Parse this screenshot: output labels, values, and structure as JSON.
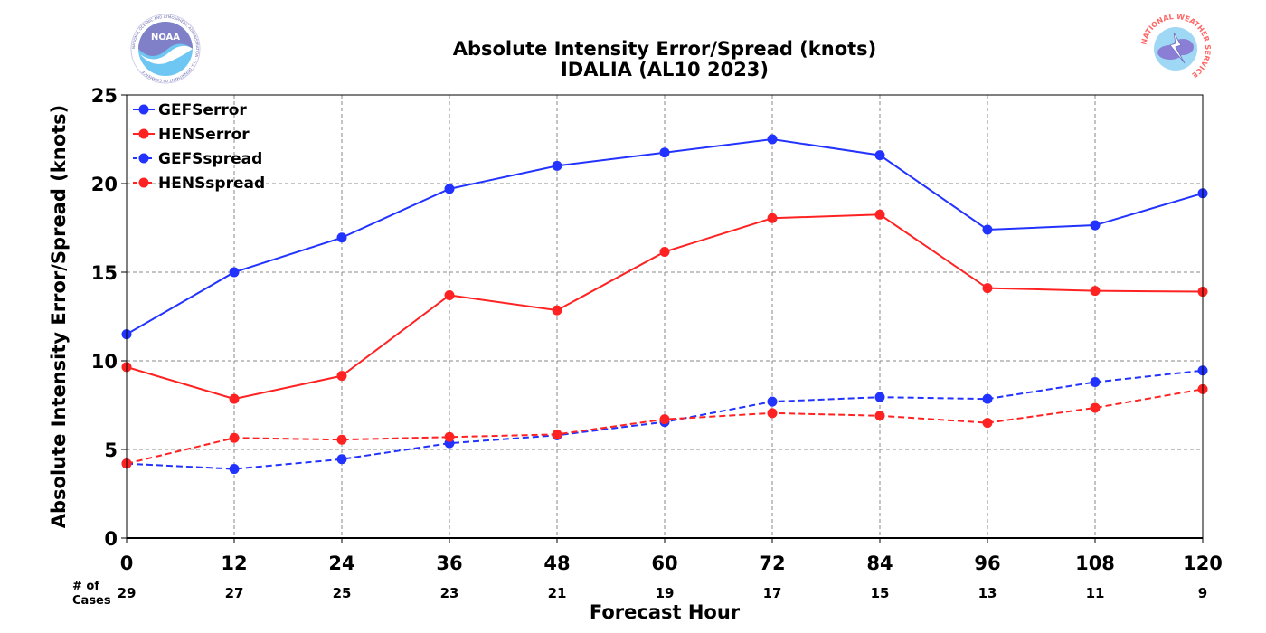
{
  "title": "Absolute Intensity Error/Spread (knots)",
  "subtitle": "IDALIA (AL10 2023)",
  "logos": {
    "left": "NOAA",
    "left_ring_text": "NATIONAL OCEANIC AND ATMOSPHERIC ADMINISTRATION · U.S. DEPARTMENT OF COMMERCE",
    "right_ring_text": "NATIONAL WEATHER SERVICE"
  },
  "cases_label": [
    "# of",
    "Cases"
  ],
  "cases": [
    29,
    27,
    25,
    23,
    21,
    19,
    17,
    15,
    13,
    11,
    9
  ],
  "colors": {
    "blue": "#2233ff",
    "red": "#ff2222",
    "grid": "#888888"
  },
  "chart_data": {
    "type": "line",
    "xlabel": "Forecast Hour",
    "ylabel": "Absolute Intensity Error/Spread (knots)",
    "x": [
      0,
      12,
      24,
      36,
      48,
      60,
      72,
      84,
      96,
      108,
      120
    ],
    "xlim": [
      0,
      120
    ],
    "ylim": [
      0,
      25
    ],
    "yticks": [
      0,
      5,
      10,
      15,
      20,
      25
    ],
    "grid": true,
    "legend_position": "top-left",
    "series": [
      {
        "name": "GEFSerror",
        "color": "#2233ff",
        "dash": false,
        "values": [
          11.5,
          15.0,
          16.95,
          19.7,
          21.0,
          21.75,
          22.5,
          21.6,
          17.4,
          17.65,
          19.45
        ]
      },
      {
        "name": "HENSerror",
        "color": "#ff2222",
        "dash": false,
        "values": [
          9.65,
          7.85,
          9.15,
          13.7,
          12.85,
          16.15,
          18.05,
          18.25,
          14.1,
          13.95,
          13.9
        ]
      },
      {
        "name": "GEFSspread",
        "color": "#2233ff",
        "dash": true,
        "values": [
          4.2,
          3.9,
          4.45,
          5.35,
          5.8,
          6.55,
          7.7,
          7.95,
          7.85,
          8.8,
          9.45
        ]
      },
      {
        "name": "HENSspread",
        "color": "#ff2222",
        "dash": true,
        "values": [
          4.2,
          5.65,
          5.55,
          5.7,
          5.85,
          6.7,
          7.05,
          6.9,
          6.5,
          7.35,
          8.4
        ]
      }
    ]
  }
}
